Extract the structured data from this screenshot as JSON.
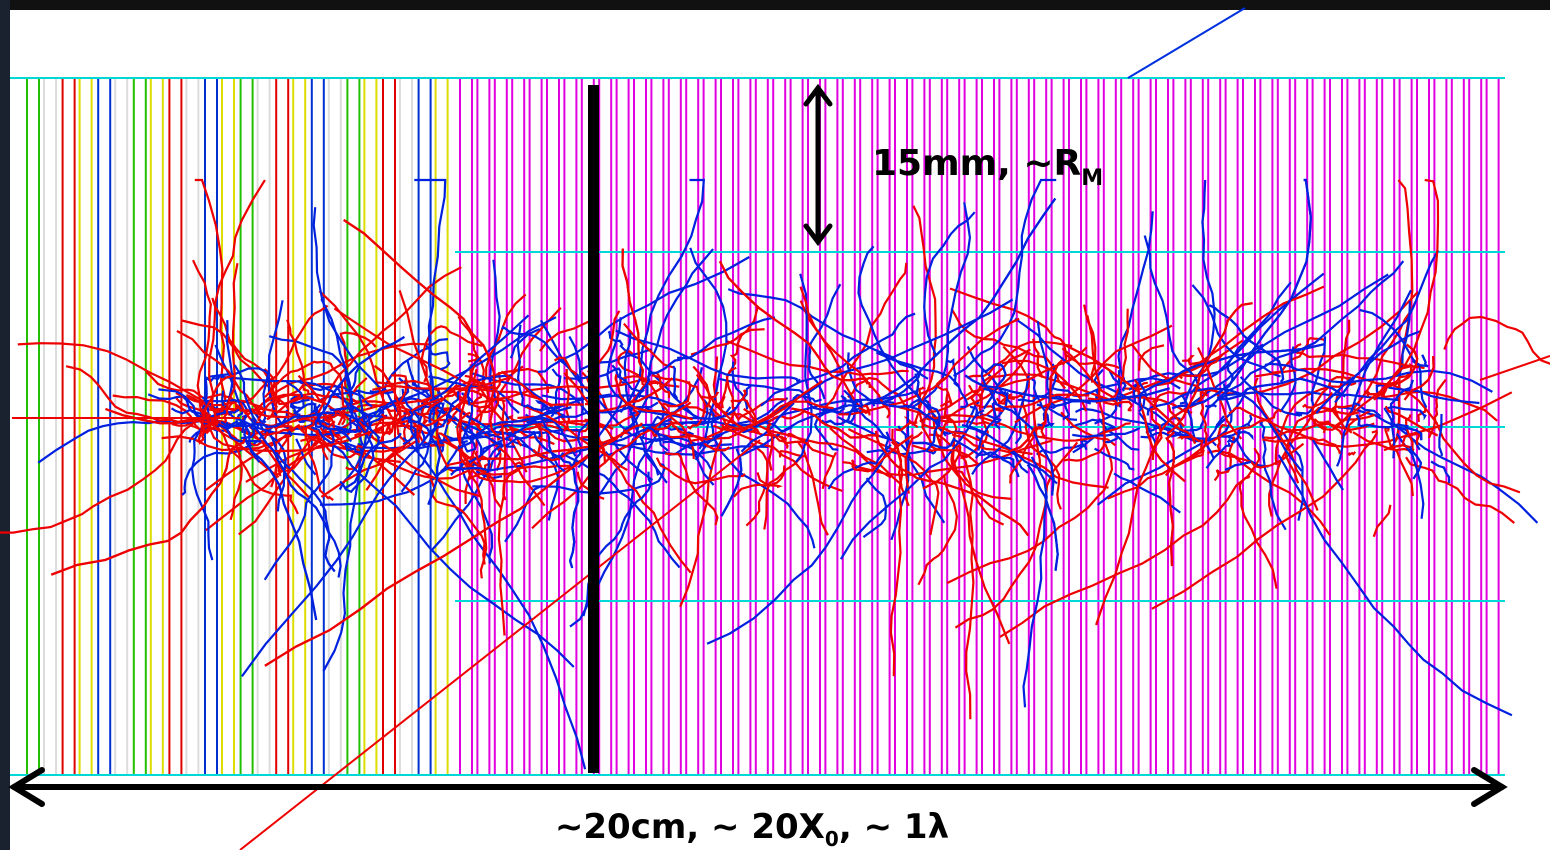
{
  "annotations": {
    "radius": {
      "text": "15mm, ~R",
      "subscript": "M"
    },
    "length": {
      "text": "~20cm, ~ 20X",
      "subscript": "0",
      "suffix": ", ~ 1λ"
    }
  }
}
